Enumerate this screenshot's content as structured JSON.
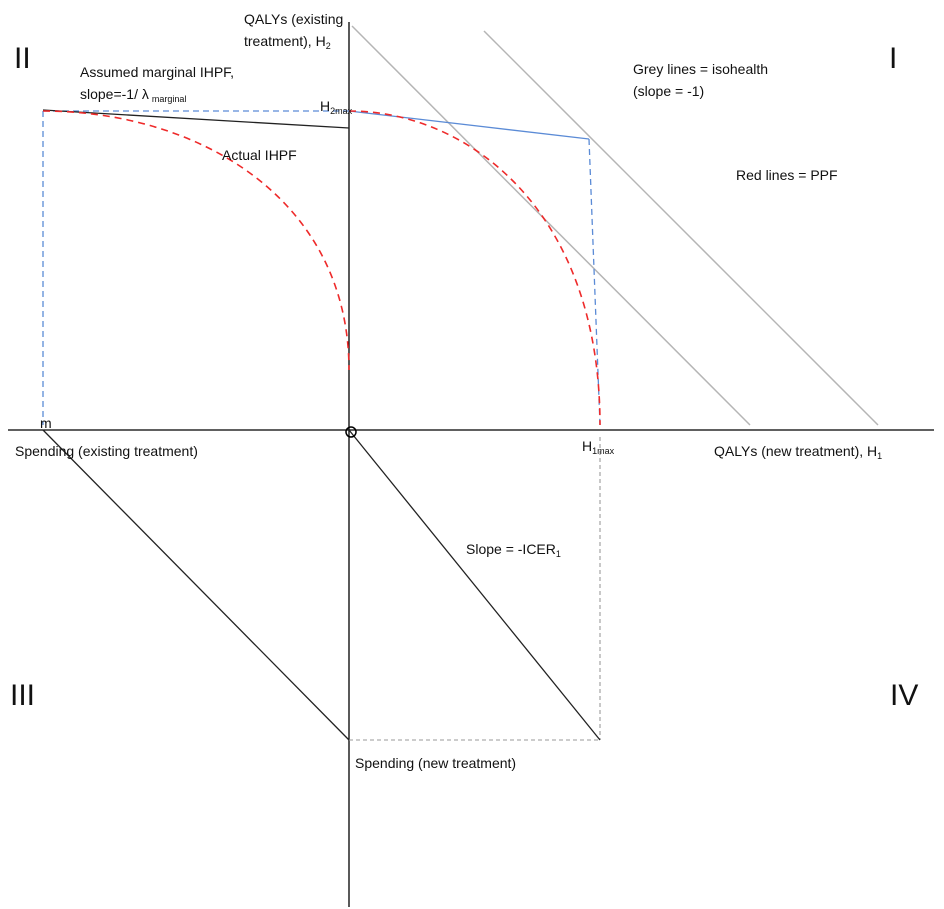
{
  "quadrants": {
    "q1": "I",
    "q2": "II",
    "q3": "III",
    "q4": "IV"
  },
  "labels": {
    "h2_axis_line1": "QALYs (existing",
    "h2_axis_line2": "treatment), H",
    "h2_axis_sub": "2",
    "h1_axis": "QALYs (new treatment), H",
    "h1_axis_sub": "1",
    "spend_existing": "Spending (existing treatment)",
    "spend_new": "Spending (new treatment)",
    "assumed_line1": "Assumed marginal IHPF,",
    "assumed_line2": "slope=-1/ λ",
    "assumed_sub": "marginal",
    "actual_ihpf": "Actual IHPF",
    "h2max_main": "H",
    "h2max_sub": "2max",
    "h1max_main": "H",
    "h1max_sub": "1max",
    "grey_line1": "Grey lines = isohealth",
    "grey_line2": "(slope = -1)",
    "red_lines": "Red lines = PPF",
    "slope_main": "Slope = -ICER",
    "slope_sub": "1",
    "origin": "O",
    "m_label": "m"
  },
  "colors": {
    "axis": "#000000",
    "ppf": "#ee2a2a",
    "isohealth": "#b5b5b5",
    "blue": "#5b8bd6",
    "dashed_grey": "#9a9a9a",
    "black_line": "#222222"
  }
}
